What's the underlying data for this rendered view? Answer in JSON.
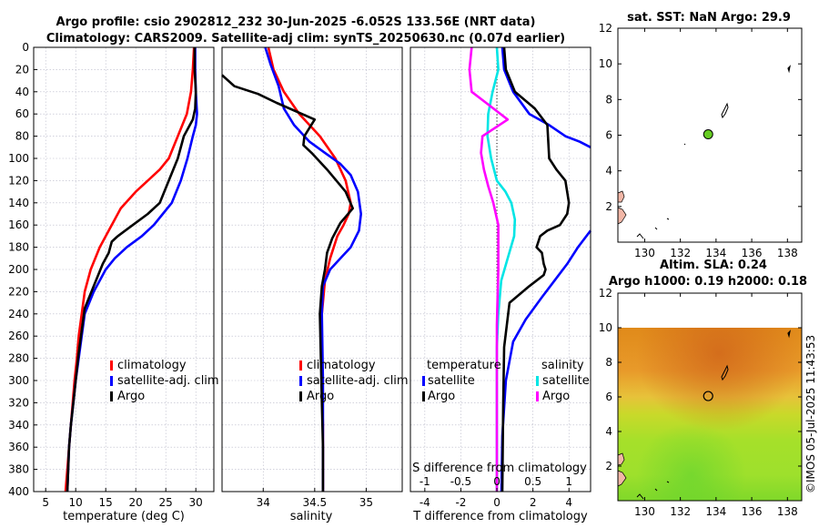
{
  "title": {
    "line1": "Argo profile: csio 2902812_232 30-Jun-2025 -6.052S 133.56E (NRT data)",
    "line2": "Climatology: CARS2009. Satellite-adj clim: synTS_20250630.nc (0.07d earlier)"
  },
  "credit": "©IMOS 05-Jul-2025 11:43:53",
  "colors": {
    "climatology": "#ff0000",
    "satellite": "#0000ff",
    "argo": "#000000",
    "cyan": "#00e5e5",
    "magenta": "#ff00ff",
    "grid": "#b8b8c8"
  },
  "chart_data": [
    {
      "id": "temperature",
      "type": "line",
      "xlabel": "temperature (deg C)",
      "ylabel": "",
      "xlim": [
        3,
        33
      ],
      "ylim": [
        400,
        0
      ],
      "xticks": [
        5,
        10,
        15,
        20,
        25,
        30
      ],
      "yticks": [
        0,
        20,
        40,
        60,
        80,
        100,
        120,
        140,
        160,
        180,
        200,
        220,
        240,
        260,
        280,
        300,
        320,
        340,
        360,
        380,
        400
      ],
      "legend": [
        "climatology",
        "satellite-adj. clim",
        "Argo"
      ],
      "series": [
        {
          "name": "climatology",
          "color": "#ff0000",
          "x": [
            29.7,
            29.5,
            29.2,
            28.5,
            27.0,
            25.5,
            24.0,
            22.0,
            20.0,
            17.5,
            15.5,
            14.0,
            12.5,
            11.5,
            11.0,
            10.5,
            10.2,
            9.8,
            9.5,
            9.2,
            8.9,
            8.6,
            8.3
          ],
          "y": [
            0,
            20,
            40,
            60,
            80,
            100,
            110,
            120,
            130,
            145,
            165,
            180,
            200,
            220,
            240,
            260,
            280,
            300,
            320,
            340,
            360,
            380,
            400
          ]
        },
        {
          "name": "satellite-adj. clim",
          "color": "#0000ff",
          "x": [
            29.9,
            29.9,
            30.0,
            30.2,
            30.0,
            29.5,
            28.6,
            27.5,
            26.0,
            24.5,
            23.0,
            21.0,
            18.5,
            16.5,
            15.0,
            13.0,
            11.5,
            11.0,
            10.5,
            10.0,
            9.6,
            9.2,
            8.9,
            8.6
          ],
          "y": [
            0,
            20,
            40,
            60,
            70,
            80,
            100,
            120,
            140,
            150,
            160,
            170,
            180,
            190,
            200,
            220,
            240,
            260,
            280,
            300,
            320,
            340,
            360,
            400
          ]
        },
        {
          "name": "Argo",
          "color": "#000000",
          "x": [
            29.8,
            29.8,
            30.0,
            29.9,
            29.5,
            28.0,
            27.0,
            25.5,
            24.0,
            22.0,
            19.5,
            17.0,
            16.0,
            15.5,
            14.5,
            13.0,
            11.5,
            11.0,
            10.5,
            10.0,
            9.6,
            9.2,
            8.9,
            8.6
          ],
          "y": [
            0,
            20,
            40,
            55,
            65,
            80,
            100,
            120,
            140,
            150,
            160,
            170,
            175,
            185,
            195,
            215,
            235,
            255,
            275,
            300,
            320,
            340,
            360,
            400
          ]
        }
      ]
    },
    {
      "id": "salinity",
      "type": "line",
      "xlabel": "salinity",
      "ylabel": "",
      "xlim": [
        33.6,
        35.35
      ],
      "ylim": [
        400,
        0
      ],
      "xticks": [
        34,
        34.5,
        35
      ],
      "xtick_labels": [
        "34",
        "34.5",
        "35"
      ],
      "legend": [
        "climatology",
        "satellite-adj. clim",
        "Argo"
      ],
      "series": [
        {
          "name": "climatology",
          "color": "#ff0000",
          "x": [
            34.05,
            34.1,
            34.2,
            34.35,
            34.55,
            34.7,
            34.8,
            34.85,
            34.83,
            34.78,
            34.72,
            34.65,
            34.6,
            34.57,
            34.56,
            34.57,
            34.58,
            34.58,
            34.58
          ],
          "y": [
            0,
            20,
            40,
            60,
            80,
            100,
            120,
            140,
            150,
            160,
            170,
            190,
            210,
            240,
            260,
            300,
            340,
            370,
            400
          ]
        },
        {
          "name": "satellite-adj. clim",
          "color": "#0000ff",
          "x": [
            34.02,
            34.07,
            34.15,
            34.2,
            34.3,
            34.45,
            34.6,
            34.75,
            34.85,
            34.92,
            34.95,
            34.93,
            34.85,
            34.75,
            34.65,
            34.58,
            34.57,
            34.58,
            34.58,
            34.58
          ],
          "y": [
            0,
            15,
            35,
            55,
            70,
            85,
            95,
            105,
            115,
            130,
            150,
            165,
            180,
            190,
            200,
            215,
            240,
            300,
            360,
            400
          ]
        },
        {
          "name": "Argo",
          "color": "#000000",
          "x": [
            33.6,
            33.72,
            33.95,
            34.13,
            34.5,
            34.4,
            34.39,
            34.47,
            34.62,
            34.8,
            34.87,
            34.75,
            34.67,
            34.62,
            34.6,
            34.57,
            34.55,
            34.56,
            34.57,
            34.58,
            34.58
          ],
          "y": [
            25,
            35,
            42,
            50,
            65,
            80,
            88,
            95,
            110,
            130,
            145,
            158,
            172,
            185,
            200,
            215,
            240,
            280,
            320,
            360,
            400
          ]
        }
      ]
    },
    {
      "id": "difference",
      "type": "line",
      "xlabel": "T difference from climatology",
      "top_xlabel": "S difference from climatology",
      "ylabel": "",
      "xlim": [
        -4.8,
        5.2
      ],
      "top_xlim": [
        -1.2,
        1.3
      ],
      "ylim": [
        400,
        0
      ],
      "xticks": [
        -4,
        -2,
        0,
        2,
        4
      ],
      "xtick_labels": [
        "-4",
        "-2",
        "0",
        "2",
        "4"
      ],
      "top_xticks": [
        -1,
        -0.5,
        0,
        0.5,
        1
      ],
      "top_xtick_labels": [
        "-1",
        "-0.5",
        "0",
        "0.5",
        "1"
      ],
      "legend": {
        "temperature_header": "temperature",
        "salinity_header": "salinity",
        "t_satellite": "satellite",
        "t_argo": "Argo",
        "s_satellite": "satellite",
        "s_argo": "Argo"
      },
      "series": [
        {
          "name": "T satellite",
          "color": "#0000ff",
          "axis": "T",
          "x": [
            0.3,
            0.4,
            0.9,
            1.8,
            2.9,
            3.8,
            4.6,
            5.2
          ],
          "y": [
            0,
            20,
            40,
            60,
            70,
            80,
            85,
            90
          ]
        },
        {
          "name": "T satellite deep",
          "color": "#0000ff",
          "axis": "T",
          "x": [
            5.2,
            4.5,
            3.9,
            3.2,
            2.5,
            1.6,
            0.9,
            0.5,
            0.3,
            0.25
          ],
          "y": [
            165,
            180,
            195,
            210,
            225,
            245,
            265,
            300,
            350,
            400
          ]
        },
        {
          "name": "T Argo",
          "color": "#000000",
          "axis": "T",
          "x": [
            0.4,
            0.5,
            1.0,
            2.1,
            2.8,
            2.9,
            3.3,
            3.8,
            4.0,
            3.9,
            3.5,
            2.8,
            2.4,
            2.2,
            2.5,
            2.6,
            2.7,
            2.6,
            1.8,
            0.7,
            0.4,
            0.35,
            0.3
          ],
          "y": [
            0,
            20,
            40,
            55,
            70,
            100,
            110,
            120,
            140,
            150,
            160,
            165,
            170,
            180,
            185,
            195,
            200,
            205,
            215,
            230,
            270,
            320,
            400
          ]
        },
        {
          "name": "S satellite",
          "color": "#00e5e5",
          "axis": "S",
          "x": [
            0.0,
            0.02,
            -0.06,
            -0.12,
            -0.13,
            -0.08,
            0.0,
            0.12,
            0.2,
            0.25,
            0.24,
            0.15,
            0.06,
            0.02,
            0.0,
            0.0,
            0.0,
            0.0
          ],
          "y": [
            0,
            20,
            40,
            60,
            80,
            100,
            120,
            130,
            140,
            155,
            170,
            190,
            210,
            240,
            270,
            310,
            350,
            400
          ]
        },
        {
          "name": "S Argo",
          "color": "#ff00ff",
          "axis": "S",
          "x": [
            -0.35,
            -0.38,
            -0.35,
            -0.15,
            0.15,
            -0.2,
            -0.22,
            -0.18,
            -0.12,
            -0.05,
            0.02,
            0.02,
            0.0,
            0.0,
            0.0,
            0.0
          ],
          "y": [
            0,
            20,
            40,
            50,
            65,
            80,
            95,
            110,
            125,
            140,
            160,
            200,
            250,
            300,
            350,
            400
          ]
        }
      ]
    },
    {
      "id": "sst_map",
      "type": "scatter",
      "title": "sat. SST: NaN Argo: 29.9",
      "xlim": [
        128.5,
        138.8
      ],
      "ylim": [
        0,
        12
      ],
      "xticks": [
        130,
        132,
        134,
        136,
        138
      ],
      "yticks": [
        2,
        4,
        6,
        8,
        10,
        12
      ],
      "float_position": {
        "lon": 133.56,
        "lat": 6.05,
        "color": "#66cc22"
      }
    },
    {
      "id": "sla_map",
      "type": "heatmap",
      "title_line1": "Altim. SLA: 0.24",
      "title_line2": "Argo h1000: 0.19 h2000: 0.18",
      "xlim": [
        128.5,
        138.8
      ],
      "ylim": [
        0,
        12
      ],
      "data_lat_range": [
        0,
        10
      ],
      "xticks": [
        130,
        132,
        134,
        136,
        138
      ],
      "yticks": [
        2,
        4,
        6,
        8,
        10,
        12
      ],
      "float_position": {
        "lon": 133.56,
        "lat": 6.05
      }
    }
  ]
}
